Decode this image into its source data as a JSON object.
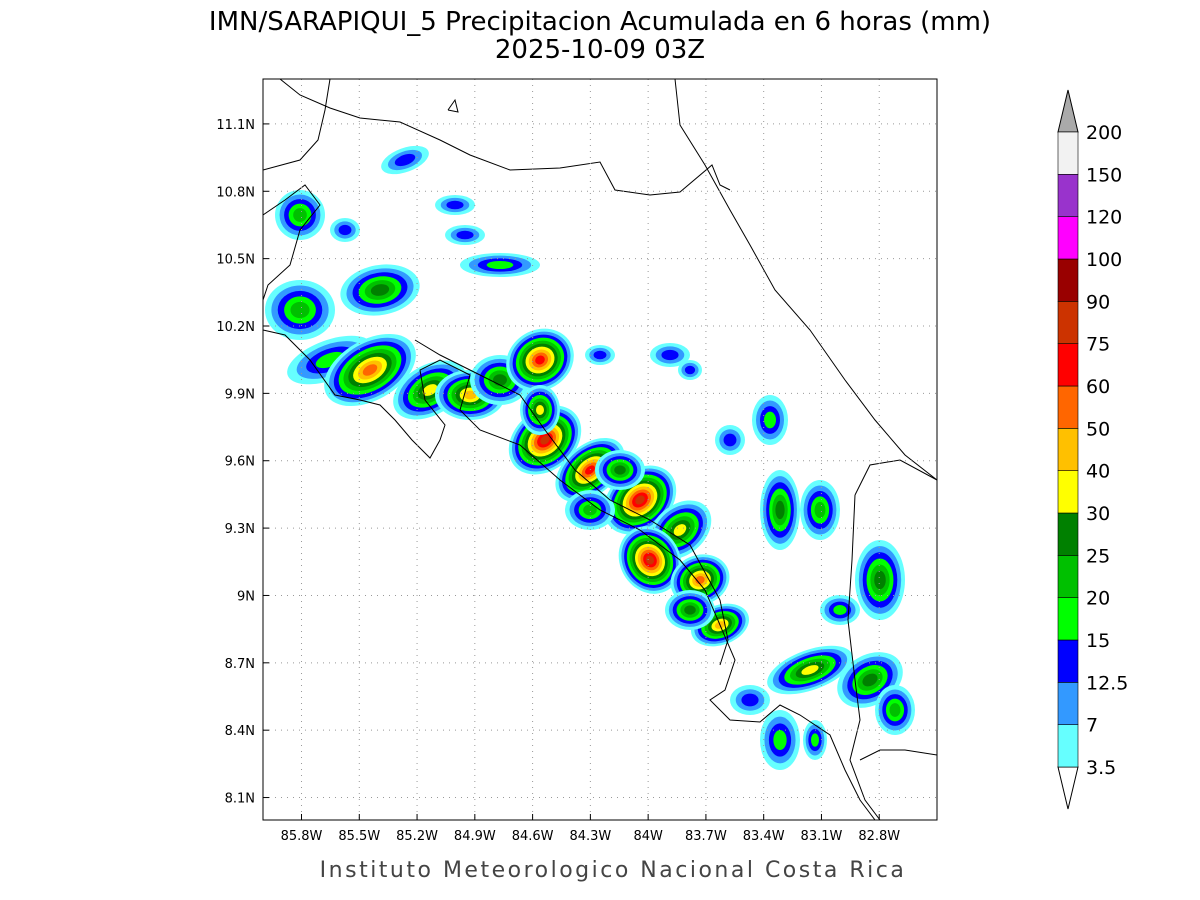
{
  "map": {
    "title": "IMN/SARAPIQUI_5 Precipitacion Acumulada en 6 horas (mm)",
    "subtitle": "2025-10-09 03Z",
    "footer": "Instituto Meteorologico Nacional Costa Rica",
    "lonlim": [
      -86.0,
      -82.5
    ],
    "latlim": [
      8.0,
      11.3
    ],
    "grid": true,
    "lon_ticks": [
      {
        "value": -85.8,
        "label": "85.8W"
      },
      {
        "value": -85.5,
        "label": "85.5W"
      },
      {
        "value": -85.2,
        "label": "85.2W"
      },
      {
        "value": -84.9,
        "label": "84.9W"
      },
      {
        "value": -84.6,
        "label": "84.6W"
      },
      {
        "value": -84.3,
        "label": "84.3W"
      },
      {
        "value": -84.0,
        "label": "84W"
      },
      {
        "value": -83.7,
        "label": "83.7W"
      },
      {
        "value": -83.4,
        "label": "83.4W"
      },
      {
        "value": -83.1,
        "label": "83.1W"
      },
      {
        "value": -82.8,
        "label": "82.8W"
      }
    ],
    "lat_ticks": [
      {
        "value": 8.1,
        "label": "8.1N"
      },
      {
        "value": 8.4,
        "label": "8.4N"
      },
      {
        "value": 8.7,
        "label": "8.7N"
      },
      {
        "value": 9.0,
        "label": "9N"
      },
      {
        "value": 9.3,
        "label": "9.3N"
      },
      {
        "value": 9.6,
        "label": "9.6N"
      },
      {
        "value": 9.9,
        "label": "9.9N"
      },
      {
        "value": 10.2,
        "label": "10.2N"
      },
      {
        "value": 10.5,
        "label": "10.5N"
      },
      {
        "value": 10.8,
        "label": "10.8N"
      },
      {
        "value": 11.1,
        "label": "11.1N"
      }
    ],
    "colorbar": {
      "levels": [
        3.5,
        7,
        12.5,
        15,
        20,
        25,
        30,
        40,
        50,
        60,
        75,
        90,
        100,
        120,
        150,
        200
      ],
      "colors": [
        "#66ffff",
        "#3399ff",
        "#0000ff",
        "#00ff00",
        "#00c000",
        "#008000",
        "#ffff00",
        "#ffc000",
        "#ff6600",
        "#ff0000",
        "#cc3300",
        "#990000",
        "#ff00ff",
        "#9933cc",
        "#f2f2f2"
      ],
      "under_color": "#ffffff",
      "over_color": "#aaaaaa"
    }
  }
}
